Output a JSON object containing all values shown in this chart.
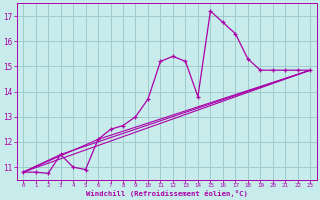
{
  "bg_color": "#c8ecec",
  "grid_color": "#a0cccc",
  "line_color": "#aa00aa",
  "xlabel": "Windchill (Refroidissement éolien,°C)",
  "xlabel_color": "#aa00aa",
  "tick_color": "#aa00aa",
  "xlim": [
    -0.5,
    23.5
  ],
  "ylim": [
    10.5,
    17.5
  ],
  "yticks": [
    11,
    12,
    13,
    14,
    15,
    16,
    17
  ],
  "xticks": [
    0,
    1,
    2,
    3,
    4,
    5,
    6,
    7,
    8,
    9,
    10,
    11,
    12,
    13,
    14,
    15,
    16,
    17,
    18,
    19,
    20,
    21,
    22,
    23
  ],
  "series1_x": [
    0,
    1,
    2,
    3,
    4,
    5,
    6,
    7,
    8,
    9,
    10,
    11,
    12,
    13,
    14,
    15,
    16,
    17,
    18,
    19,
    20,
    21,
    22,
    23
  ],
  "series1_y": [
    10.8,
    10.8,
    10.75,
    11.5,
    11.0,
    10.9,
    12.1,
    12.5,
    12.65,
    13.0,
    13.7,
    15.2,
    15.4,
    15.2,
    13.8,
    17.2,
    16.75,
    16.3,
    15.3,
    14.85,
    14.85,
    14.85,
    14.85,
    14.85
  ],
  "series2_x": [
    0,
    23
  ],
  "series2_y": [
    10.8,
    14.85
  ],
  "series3_x": [
    0,
    3,
    23
  ],
  "series3_y": [
    10.8,
    11.5,
    14.85
  ],
  "series4_x": [
    0,
    6,
    23
  ],
  "series4_y": [
    10.8,
    12.1,
    14.85
  ]
}
